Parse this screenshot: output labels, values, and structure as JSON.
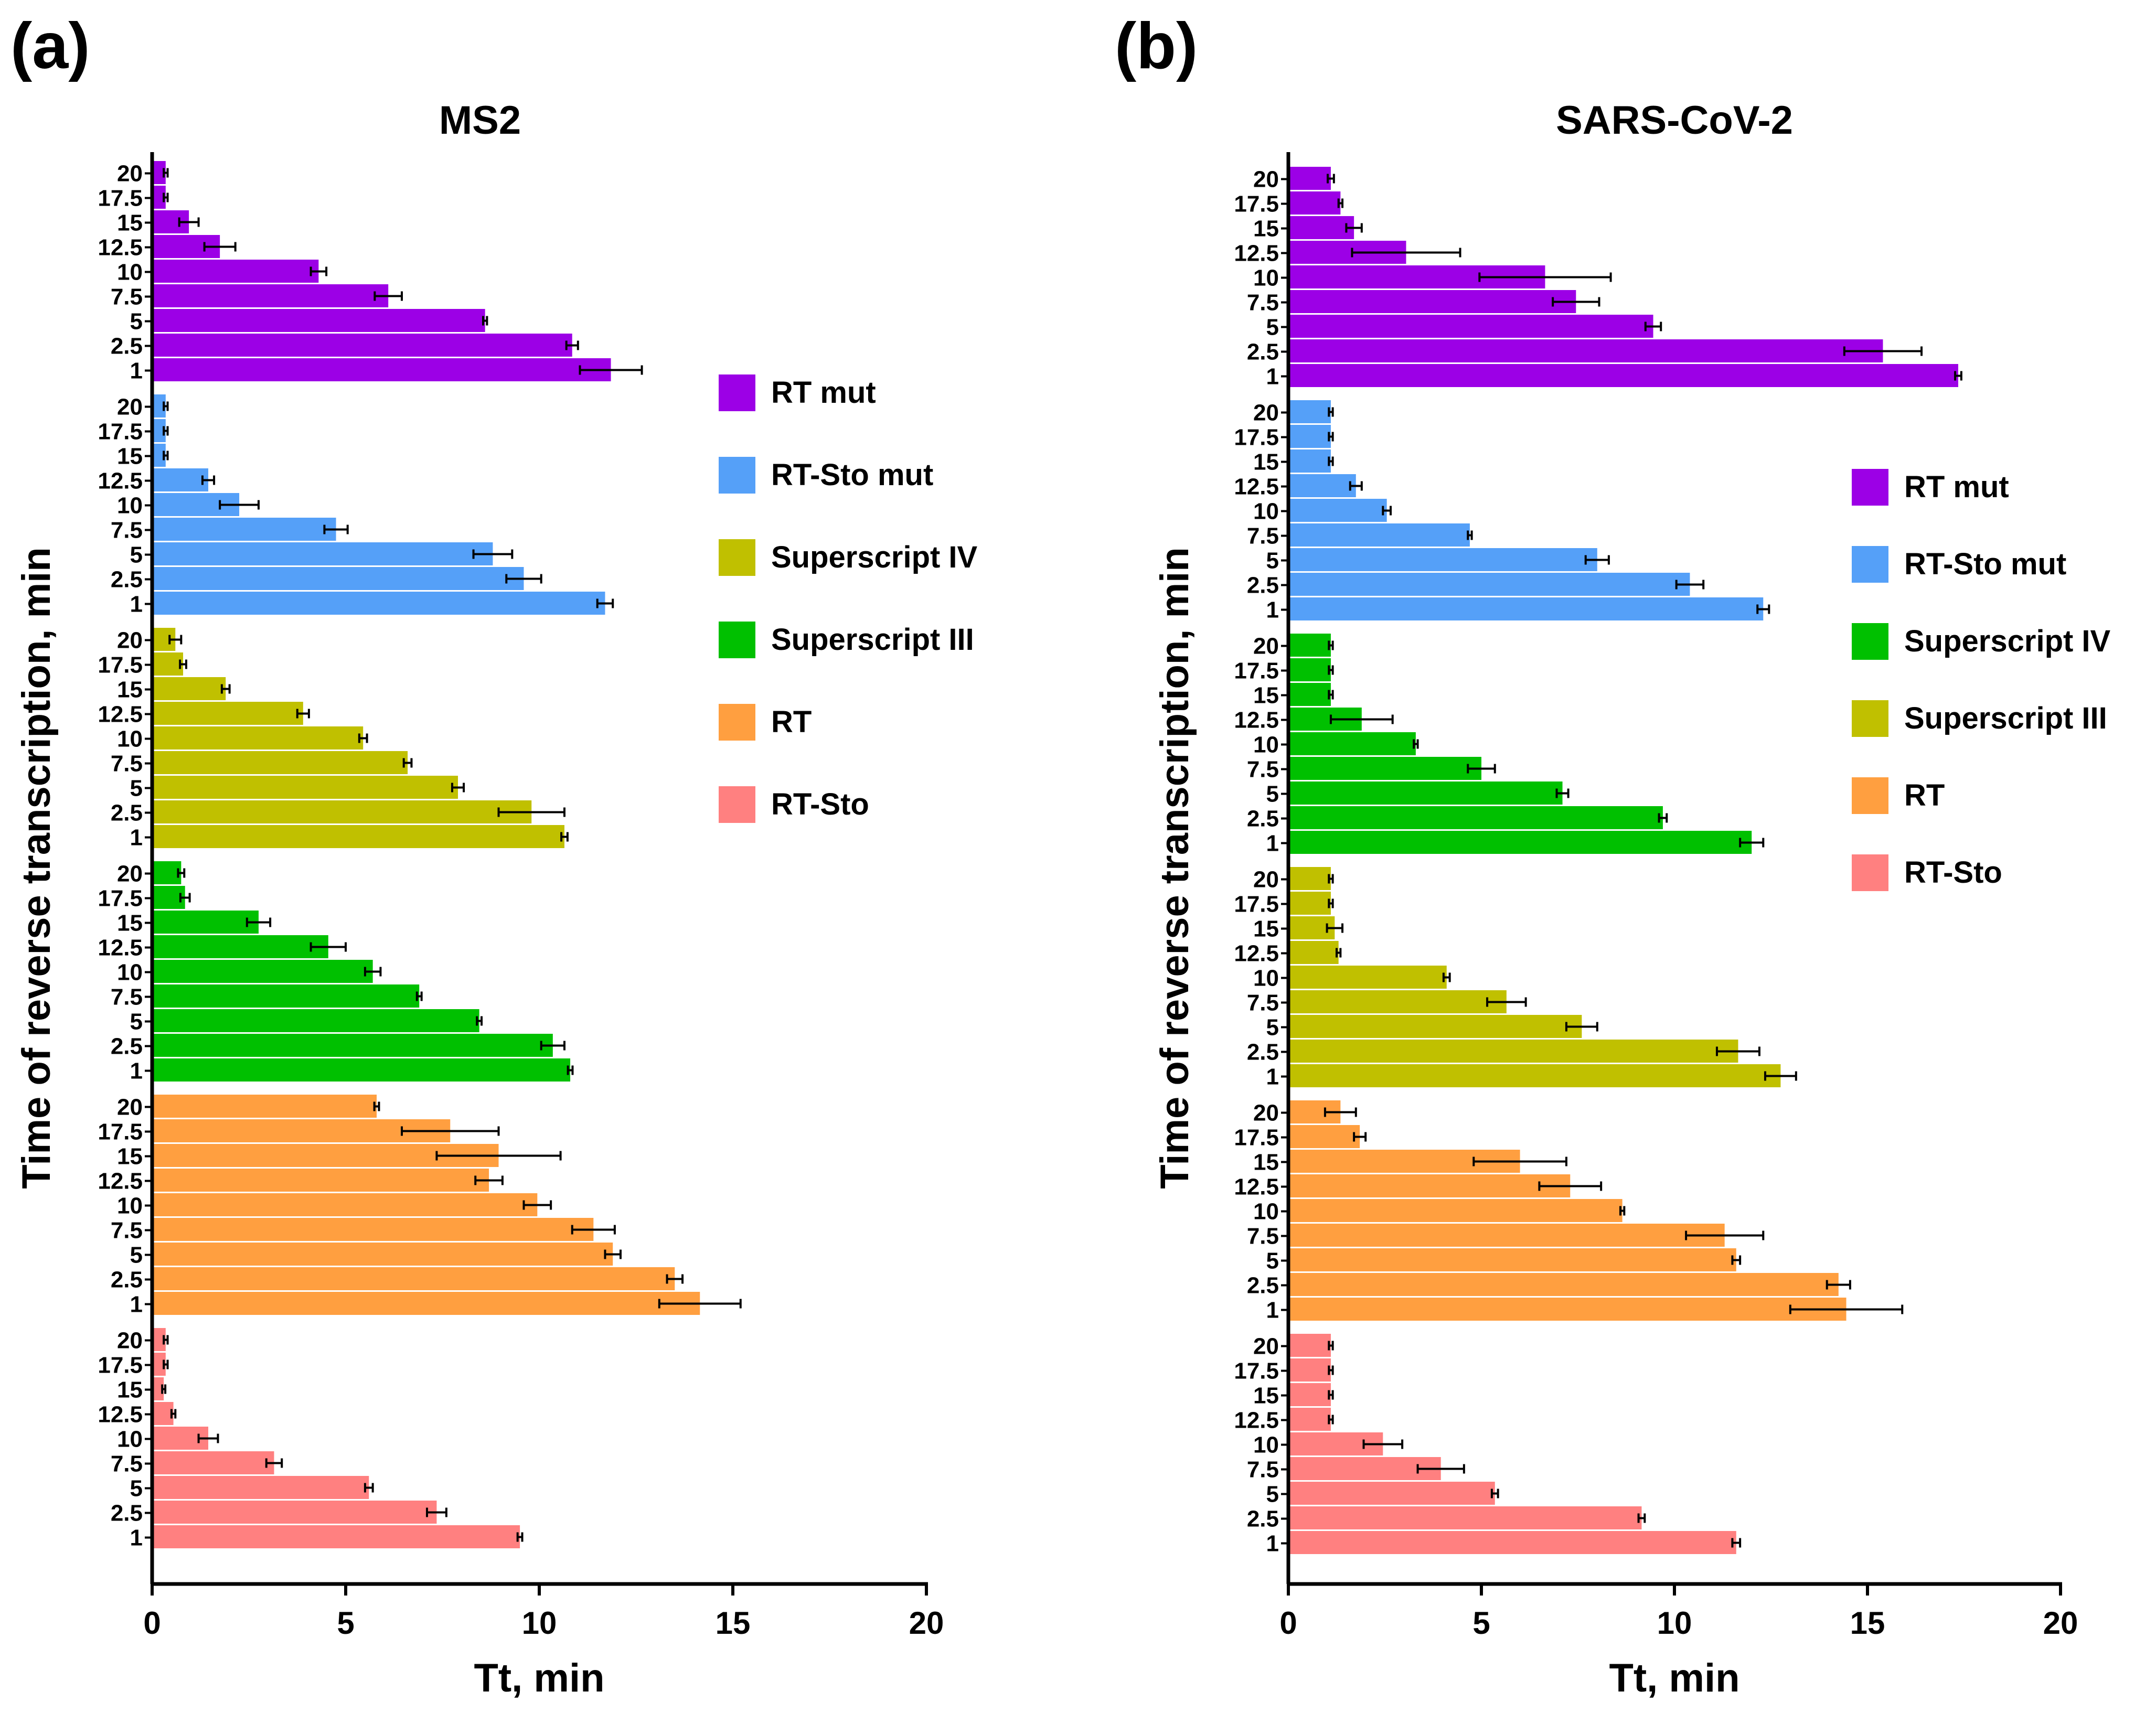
{
  "figure": {
    "panel_labels": [
      "(a)",
      "(b)"
    ]
  },
  "chart_data": [
    {
      "type": "bar",
      "orientation": "horizontal",
      "title": "MS2",
      "xlabel": "Tt, min",
      "ylabel": "Time of reverse transcription, min",
      "xlim": [
        0,
        20
      ],
      "xticks": [
        0,
        5,
        10,
        15,
        20
      ],
      "categories": [
        "20",
        "17.5",
        "15",
        "12.5",
        "10",
        "7.5",
        "5",
        "2.5",
        "1"
      ],
      "legend_position": "right",
      "series": [
        {
          "name": "RT mut",
          "color": "#9c00e6",
          "values": [
            0.35,
            0.35,
            0.95,
            1.75,
            4.3,
            6.1,
            8.6,
            10.85,
            11.85
          ],
          "errors": [
            0.05,
            0.05,
            0.25,
            0.4,
            0.2,
            0.35,
            0.05,
            0.15,
            0.8
          ]
        },
        {
          "name": "RT-Sto mut",
          "color": "#55a0f8",
          "values": [
            0.35,
            0.35,
            0.35,
            1.45,
            2.25,
            4.75,
            8.8,
            9.6,
            11.7
          ],
          "errors": [
            0.05,
            0.05,
            0.05,
            0.15,
            0.5,
            0.3,
            0.5,
            0.45,
            0.2
          ]
        },
        {
          "name": "Superscript IV",
          "color": "#c0c000",
          "values": [
            0.6,
            0.8,
            1.9,
            3.9,
            5.45,
            6.6,
            7.9,
            9.8,
            10.65
          ],
          "errors": [
            0.15,
            0.08,
            0.1,
            0.15,
            0.1,
            0.1,
            0.15,
            0.85,
            0.08
          ]
        },
        {
          "name": "Superscript III",
          "color": "#00c000",
          "values": [
            0.75,
            0.85,
            2.75,
            4.55,
            5.7,
            6.9,
            8.45,
            10.35,
            10.8
          ],
          "errors": [
            0.08,
            0.12,
            0.3,
            0.45,
            0.2,
            0.06,
            0.06,
            0.3,
            0.06
          ]
        },
        {
          "name": "RT",
          "color": "#ff9f40",
          "values": [
            5.8,
            7.7,
            8.95,
            8.7,
            9.95,
            11.4,
            11.9,
            13.5,
            14.15
          ],
          "errors": [
            0.06,
            1.25,
            1.6,
            0.35,
            0.35,
            0.55,
            0.2,
            0.2,
            1.05
          ]
        },
        {
          "name": "RT-Sto",
          "color": "#ff8080",
          "values": [
            0.35,
            0.35,
            0.3,
            0.55,
            1.45,
            3.15,
            5.6,
            7.35,
            9.5
          ],
          "errors": [
            0.05,
            0.05,
            0.04,
            0.05,
            0.25,
            0.2,
            0.1,
            0.25,
            0.06
          ]
        }
      ]
    },
    {
      "type": "bar",
      "orientation": "horizontal",
      "title": "SARS-CoV-2",
      "xlabel": "Tt, min",
      "ylabel": "Time of reverse transcription, min",
      "xlim": [
        0,
        20
      ],
      "xticks": [
        0,
        5,
        10,
        15,
        20
      ],
      "categories": [
        "20",
        "17.5",
        "15",
        "12.5",
        "10",
        "7.5",
        "5",
        "2.5",
        "1"
      ],
      "legend_position": "right",
      "series": [
        {
          "name": "RT mut",
          "color": "#9c00e6",
          "values": [
            1.1,
            1.35,
            1.7,
            3.05,
            6.65,
            7.45,
            9.45,
            15.4,
            17.35
          ],
          "errors": [
            0.08,
            0.05,
            0.2,
            1.4,
            1.7,
            0.6,
            0.2,
            1.0,
            0.08
          ]
        },
        {
          "name": "RT-Sto mut",
          "color": "#55a0f8",
          "values": [
            1.1,
            1.1,
            1.1,
            1.75,
            2.55,
            4.7,
            8.0,
            10.4,
            12.3
          ],
          "errors": [
            0.05,
            0.05,
            0.05,
            0.15,
            0.1,
            0.05,
            0.3,
            0.35,
            0.15
          ]
        },
        {
          "name": "Superscript IV",
          "color": "#00c000",
          "values": [
            1.1,
            1.1,
            1.1,
            1.9,
            3.3,
            5.0,
            7.1,
            9.7,
            12.0
          ],
          "errors": [
            0.05,
            0.05,
            0.05,
            0.8,
            0.05,
            0.35,
            0.15,
            0.1,
            0.3
          ]
        },
        {
          "name": "Superscript III",
          "color": "#c0c000",
          "values": [
            1.1,
            1.1,
            1.2,
            1.3,
            4.1,
            5.65,
            7.6,
            11.65,
            12.75
          ],
          "errors": [
            0.05,
            0.05,
            0.2,
            0.05,
            0.08,
            0.5,
            0.4,
            0.55,
            0.4
          ]
        },
        {
          "name": "RT",
          "color": "#ff9f40",
          "values": [
            1.35,
            1.85,
            6.0,
            7.3,
            8.65,
            11.3,
            11.6,
            14.25,
            14.45
          ],
          "errors": [
            0.4,
            0.15,
            1.2,
            0.8,
            0.05,
            1.0,
            0.1,
            0.3,
            1.45
          ]
        },
        {
          "name": "RT-Sto",
          "color": "#ff8080",
          "values": [
            1.1,
            1.1,
            1.1,
            1.1,
            2.45,
            3.95,
            5.35,
            9.15,
            11.6
          ],
          "errors": [
            0.05,
            0.05,
            0.05,
            0.05,
            0.5,
            0.6,
            0.08,
            0.08,
            0.1
          ]
        }
      ]
    }
  ]
}
